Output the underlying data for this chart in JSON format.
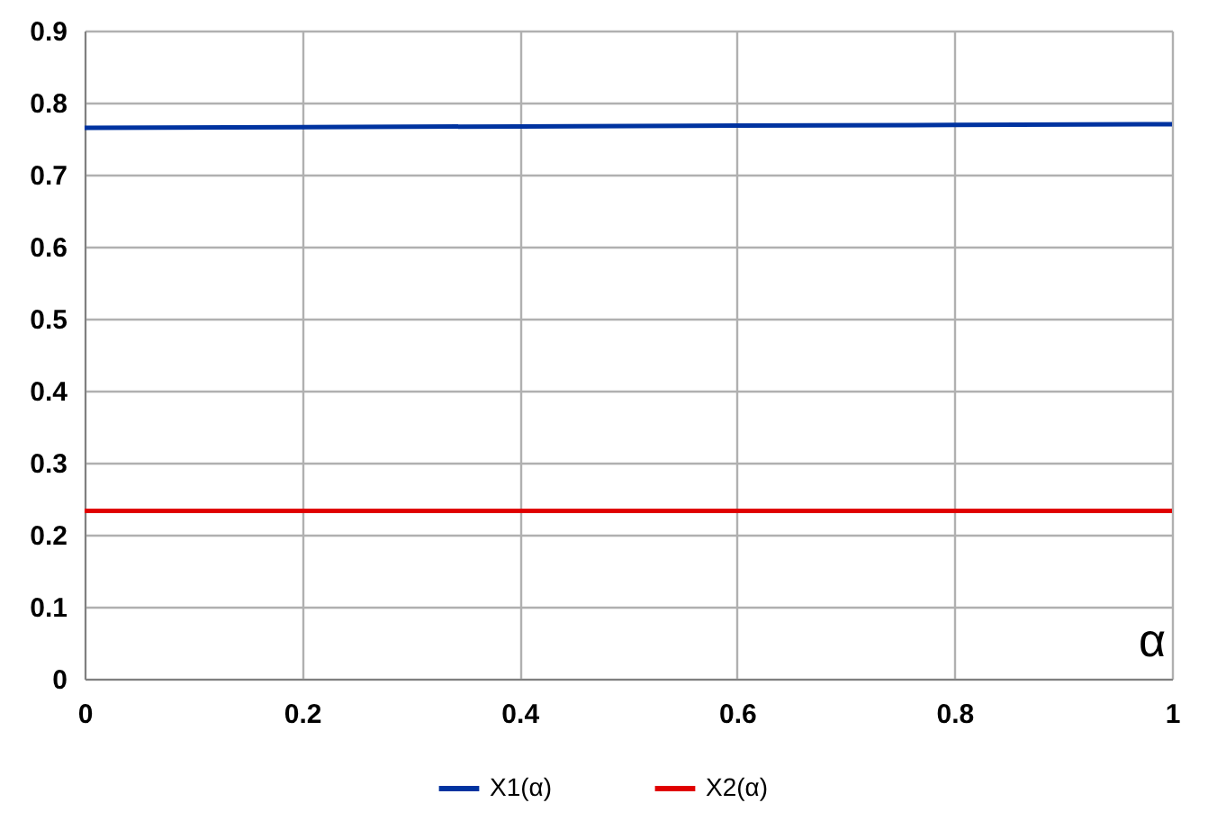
{
  "chart_data": {
    "type": "line",
    "xlabel": "α",
    "x": [
      0,
      0.2,
      0.4,
      0.6,
      0.8,
      1
    ],
    "series": [
      {
        "name": "X1(α)",
        "color": "#0033a0",
        "values": [
          0.765,
          0.766,
          0.767,
          0.768,
          0.769,
          0.77
        ]
      },
      {
        "name": "X2(α)",
        "color": "#e00000",
        "values": [
          0.233,
          0.233,
          0.233,
          0.233,
          0.233,
          0.233
        ]
      }
    ],
    "xlim": [
      0,
      1
    ],
    "xticks": [
      0,
      0.2,
      0.4,
      0.6,
      0.8,
      1
    ],
    "ylim": [
      0,
      0.9
    ],
    "yticks": [
      0,
      0.1,
      0.2,
      0.3,
      0.4,
      0.5,
      0.6,
      0.7,
      0.8,
      0.9
    ],
    "grid": true,
    "legend": "bottom",
    "marker": "none",
    "line_style": "solid"
  }
}
